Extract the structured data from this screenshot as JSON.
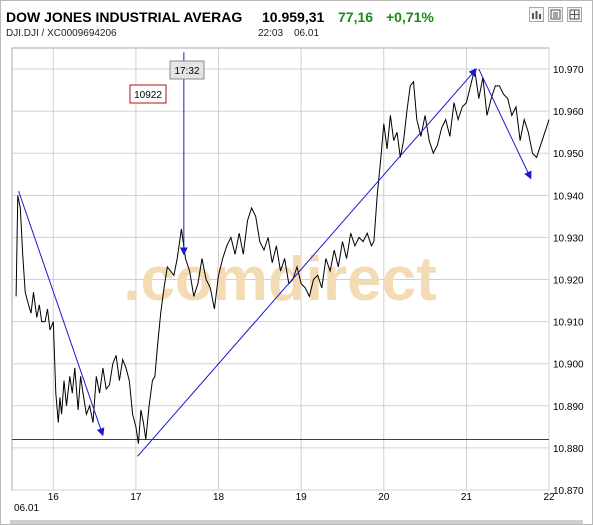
{
  "header": {
    "instrument_name": "DOW JONES INDUSTRIAL AVERAG",
    "last_price": "10.959,31",
    "change_abs": "77,16",
    "change_pct": "+0,71%",
    "symbol_line": "DJI.DJI  /  XC0009694206",
    "quote_time": "22:03",
    "quote_date": "06.01"
  },
  "colors": {
    "positive": "#1a8a1a",
    "price_line": "#000000",
    "trend_arrow": "#1a1acc",
    "support_line": "#b01010",
    "grid": "#d0d0d0",
    "watermark": "#f3dcb4"
  },
  "watermark_text": ".comdirect",
  "chart_data": {
    "type": "line",
    "x_date_label": "06.01",
    "ylim": [
      10870,
      10975
    ],
    "yticks": [
      10870,
      10880,
      10890,
      10900,
      10910,
      10920,
      10930,
      10940,
      10950,
      10960,
      10970
    ],
    "ytick_labels": [
      "10.870",
      "10.880",
      "10.890",
      "10.900",
      "10.910",
      "10.920",
      "10.930",
      "10.940",
      "10.950",
      "10.960",
      "10.970"
    ],
    "xlim": [
      15.5,
      22.0
    ],
    "xticks": [
      16,
      17,
      18,
      19,
      20,
      21,
      22
    ],
    "xtick_labels": [
      "16",
      "17",
      "18",
      "19",
      "20",
      "21",
      "22"
    ],
    "grid": true,
    "series": [
      {
        "x": [
          15.55,
          15.57,
          15.6,
          15.63,
          15.66,
          15.7,
          15.73,
          15.76,
          15.8,
          15.83,
          15.86,
          15.9,
          15.93,
          15.96,
          16.0,
          16.03,
          16.06,
          16.08,
          16.1,
          16.13,
          16.16,
          16.2,
          16.23,
          16.26,
          16.3,
          16.33,
          16.36,
          16.4,
          16.44,
          16.48,
          16.52,
          16.56,
          16.6,
          16.64,
          16.68,
          16.72,
          16.76,
          16.8,
          16.84,
          16.88,
          16.92,
          16.96,
          17.0,
          17.03,
          17.06,
          17.09,
          17.12,
          17.16,
          17.2,
          17.23,
          17.26,
          17.3,
          17.34,
          17.38,
          17.42,
          17.46,
          17.5,
          17.55,
          17.6,
          17.65,
          17.7,
          17.75,
          17.8,
          17.85,
          17.9,
          17.95,
          18.0,
          18.05,
          18.1,
          18.15,
          18.2,
          18.25,
          18.3,
          18.35,
          18.4,
          18.45,
          18.5,
          18.55,
          18.6,
          18.65,
          18.7,
          18.75,
          18.8,
          18.85,
          18.9,
          18.95,
          19.0,
          19.05,
          19.1,
          19.15,
          19.2,
          19.25,
          19.3,
          19.35,
          19.4,
          19.45,
          19.5,
          19.55,
          19.6,
          19.65,
          19.7,
          19.75,
          19.8,
          19.85,
          19.88,
          19.92,
          19.96,
          20.0,
          20.04,
          20.08,
          20.12,
          20.16,
          20.2,
          20.24,
          20.28,
          20.32,
          20.36,
          20.4,
          20.45,
          20.5,
          20.55,
          20.6,
          20.65,
          20.7,
          20.75,
          20.8,
          20.85,
          20.9,
          20.95,
          21.0,
          21.05,
          21.1,
          21.15,
          21.2,
          21.25,
          21.3,
          21.35,
          21.4,
          21.45,
          21.5,
          21.55,
          21.6,
          21.65,
          21.7,
          21.75,
          21.8,
          21.85,
          21.9,
          21.95,
          22.0
        ],
        "y": [
          10916,
          10940,
          10937,
          10926,
          10917,
          10914,
          10912,
          10917,
          10911,
          10914,
          10910,
          10910,
          10913,
          10908,
          10910,
          10893,
          10886,
          10892,
          10888,
          10896,
          10890,
          10897,
          10893,
          10899,
          10889,
          10897,
          10893,
          10888,
          10890,
          10886,
          10897,
          10893,
          10899,
          10894,
          10895,
          10900,
          10902,
          10896,
          10901,
          10899,
          10896,
          10888,
          10885,
          10881,
          10889,
          10886,
          10882,
          10890,
          10896,
          10897,
          10904,
          10912,
          10918,
          10923,
          10922,
          10921,
          10925,
          10932,
          10925,
          10922,
          10916,
          10919,
          10925,
          10920,
          10918,
          10913,
          10921,
          10925,
          10928,
          10930,
          10926,
          10931,
          10926,
          10934,
          10937,
          10935,
          10929,
          10927,
          10930,
          10924,
          10928,
          10922,
          10925,
          10919,
          10920,
          10923,
          10919,
          10918,
          10916,
          10920,
          10921,
          10918,
          10925,
          10922,
          10927,
          10923,
          10929,
          10925,
          10931,
          10928,
          10930,
          10929,
          10931,
          10928,
          10929,
          10940,
          10948,
          10957,
          10951,
          10959,
          10953,
          10955,
          10949,
          10953,
          10960,
          10966,
          10967,
          10958,
          10954,
          10959,
          10953,
          10950,
          10952,
          10956,
          10958,
          10954,
          10962,
          10958,
          10961,
          10962,
          10966,
          10970,
          10963,
          10968,
          10959,
          10963,
          10966,
          10966,
          10964,
          10963,
          10959,
          10961,
          10953,
          10958,
          10955,
          10950,
          10949,
          10952,
          10955,
          10958
        ]
      }
    ],
    "support_level": 10882,
    "annotations": [
      {
        "type": "price_label",
        "text": "10922"
      },
      {
        "type": "time_label",
        "text": "17:32"
      }
    ],
    "trend_arrows": [
      {
        "from": [
          15.58,
          10941
        ],
        "to": [
          16.6,
          10883
        ]
      },
      {
        "from": [
          17.02,
          10878
        ],
        "to": [
          21.12,
          10970
        ]
      },
      {
        "from": [
          21.15,
          10970
        ],
        "to": [
          21.78,
          10944
        ]
      },
      {
        "from": [
          17.58,
          10974
        ],
        "to": [
          17.58,
          10926
        ]
      }
    ]
  }
}
